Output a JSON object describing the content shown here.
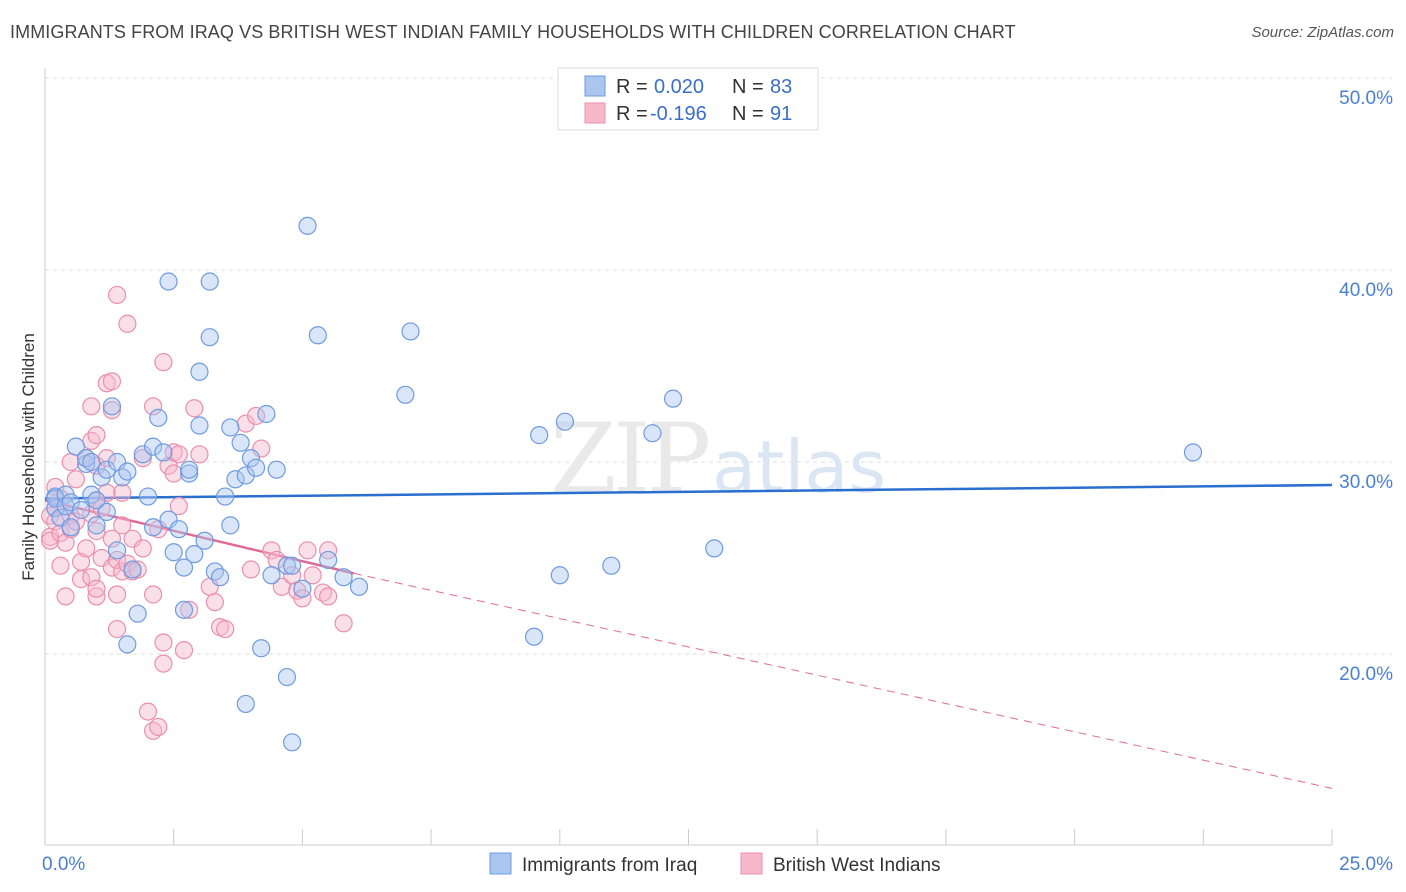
{
  "header": {
    "title": "IMMIGRANTS FROM IRAQ VS BRITISH WEST INDIAN FAMILY HOUSEHOLDS WITH CHILDREN CORRELATION CHART",
    "source": "Source: ZipAtlas.com"
  },
  "watermark": {
    "zip": "ZIP",
    "atlas": "atlas"
  },
  "colors": {
    "blue_fill": "#aac6ef",
    "blue_stroke": "#6f9be0",
    "blue_line": "#2a6fcf",
    "pink_fill": "#f7b8cc",
    "pink_stroke": "#eb8fae",
    "pink_line": "#e06a96",
    "grid": "#dddddd",
    "tick_text": "#4a7fd0"
  },
  "chart_data": {
    "type": "scatter",
    "title": "IMMIGRANTS FROM IRAQ VS BRITISH WEST INDIAN FAMILY HOUSEHOLDS WITH CHILDREN CORRELATION CHART",
    "xlabel": "",
    "ylabel": "Family Households with Children",
    "xlim": [
      0,
      25
    ],
    "ylim": [
      11,
      51
    ],
    "x_tick_labels": [
      "0.0%",
      "25.0%"
    ],
    "y_ticks": [
      20,
      30,
      40,
      50
    ],
    "y_tick_labels": [
      "20.0%",
      "30.0%",
      "40.0%",
      "50.0%"
    ],
    "legend": {
      "position": "top-center",
      "entries": [
        {
          "r_label": "R =",
          "r_value": "0.020",
          "n_label": "N =",
          "n_value": "83"
        },
        {
          "r_label": "R =",
          "r_value": "-0.196",
          "n_label": "N =",
          "n_value": "91"
        }
      ]
    },
    "series": [
      {
        "name": "Immigrants from Iraq",
        "color": "blue",
        "trend": {
          "x": [
            0,
            25
          ],
          "y": [
            28.1,
            28.8
          ],
          "style": "solid"
        },
        "points": [
          [
            0.2,
            28.2
          ],
          [
            0.2,
            27.6
          ],
          [
            0.2,
            28.1
          ],
          [
            0.3,
            27.1
          ],
          [
            0.4,
            28.3
          ],
          [
            0.4,
            27.7
          ],
          [
            0.5,
            27.9
          ],
          [
            0.5,
            26.6
          ],
          [
            0.6,
            30.8
          ],
          [
            0.7,
            27.5
          ],
          [
            0.8,
            29.9
          ],
          [
            0.8,
            30.2
          ],
          [
            0.9,
            30.0
          ],
          [
            0.9,
            28.3
          ],
          [
            1.0,
            28.0
          ],
          [
            1.0,
            26.7
          ],
          [
            1.1,
            29.2
          ],
          [
            1.2,
            29.6
          ],
          [
            1.2,
            27.4
          ],
          [
            1.3,
            32.9
          ],
          [
            1.4,
            30.0
          ],
          [
            1.4,
            25.4
          ],
          [
            1.5,
            29.2
          ],
          [
            1.6,
            20.5
          ],
          [
            1.6,
            29.5
          ],
          [
            1.7,
            24.4
          ],
          [
            1.8,
            22.1
          ],
          [
            1.9,
            30.4
          ],
          [
            2.0,
            28.2
          ],
          [
            2.1,
            30.8
          ],
          [
            2.1,
            26.6
          ],
          [
            2.2,
            32.3
          ],
          [
            2.3,
            30.5
          ],
          [
            2.4,
            27.0
          ],
          [
            2.4,
            39.4
          ],
          [
            2.5,
            25.3
          ],
          [
            2.6,
            26.5
          ],
          [
            2.7,
            22.3
          ],
          [
            2.7,
            24.5
          ],
          [
            2.8,
            29.4
          ],
          [
            2.8,
            29.6
          ],
          [
            2.9,
            25.2
          ],
          [
            3.0,
            31.9
          ],
          [
            3.0,
            34.7
          ],
          [
            3.1,
            25.9
          ],
          [
            3.2,
            36.5
          ],
          [
            3.2,
            39.4
          ],
          [
            3.3,
            24.3
          ],
          [
            3.4,
            24.0
          ],
          [
            3.5,
            28.2
          ],
          [
            3.6,
            31.8
          ],
          [
            3.6,
            26.7
          ],
          [
            3.7,
            29.1
          ],
          [
            3.8,
            31.0
          ],
          [
            3.9,
            17.4
          ],
          [
            3.9,
            29.3
          ],
          [
            4.0,
            30.2
          ],
          [
            4.1,
            29.7
          ],
          [
            4.2,
            20.3
          ],
          [
            4.3,
            32.5
          ],
          [
            4.4,
            24.1
          ],
          [
            4.5,
            29.6
          ],
          [
            4.7,
            24.6
          ],
          [
            4.7,
            18.8
          ],
          [
            4.8,
            15.4
          ],
          [
            4.8,
            24.6
          ],
          [
            5.0,
            23.4
          ],
          [
            5.1,
            42.3
          ],
          [
            5.3,
            36.6
          ],
          [
            5.5,
            24.9
          ],
          [
            5.8,
            24.0
          ],
          [
            6.1,
            23.5
          ],
          [
            7.0,
            33.5
          ],
          [
            7.1,
            36.8
          ],
          [
            9.5,
            20.9
          ],
          [
            9.6,
            31.4
          ],
          [
            10.0,
            24.1
          ],
          [
            10.1,
            32.1
          ],
          [
            11.0,
            24.6
          ],
          [
            11.8,
            31.5
          ],
          [
            12.2,
            33.3
          ],
          [
            13.0,
            25.5
          ],
          [
            22.3,
            30.5
          ]
        ]
      },
      {
        "name": "British West Indians",
        "color": "pink",
        "trend": {
          "x": [
            0,
            6.0
          ],
          "y": [
            28.0,
            24.2
          ],
          "style": "solid",
          "extended_x": [
            6.0,
            25
          ],
          "extended_y": [
            24.2,
            13.0
          ],
          "extended_style": "dashed"
        },
        "points": [
          [
            0.1,
            27.2
          ],
          [
            0.1,
            26.1
          ],
          [
            0.1,
            25.9
          ],
          [
            0.2,
            28.7
          ],
          [
            0.2,
            27.6
          ],
          [
            0.2,
            26.9
          ],
          [
            0.3,
            28.1
          ],
          [
            0.3,
            26.3
          ],
          [
            0.3,
            24.6
          ],
          [
            0.4,
            23.0
          ],
          [
            0.4,
            25.8
          ],
          [
            0.5,
            27.2
          ],
          [
            0.5,
            26.5
          ],
          [
            0.5,
            30.0
          ],
          [
            0.6,
            26.9
          ],
          [
            0.6,
            29.1
          ],
          [
            0.7,
            23.9
          ],
          [
            0.7,
            24.8
          ],
          [
            0.8,
            25.5
          ],
          [
            0.8,
            30.2
          ],
          [
            0.9,
            31.1
          ],
          [
            0.9,
            27.3
          ],
          [
            0.9,
            24.0
          ],
          [
            0.9,
            32.9
          ],
          [
            1.0,
            28.0
          ],
          [
            1.0,
            26.4
          ],
          [
            1.0,
            23.0
          ],
          [
            1.0,
            31.4
          ],
          [
            1.0,
            29.8
          ],
          [
            1.0,
            23.4
          ],
          [
            1.1,
            25.0
          ],
          [
            1.1,
            27.6
          ],
          [
            1.2,
            28.4
          ],
          [
            1.2,
            30.2
          ],
          [
            1.2,
            34.1
          ],
          [
            1.3,
            32.7
          ],
          [
            1.3,
            26.0
          ],
          [
            1.3,
            24.5
          ],
          [
            1.3,
            34.2
          ],
          [
            1.4,
            38.7
          ],
          [
            1.4,
            21.3
          ],
          [
            1.4,
            23.1
          ],
          [
            1.4,
            24.9
          ],
          [
            1.5,
            28.4
          ],
          [
            1.5,
            26.7
          ],
          [
            1.5,
            24.3
          ],
          [
            1.6,
            37.2
          ],
          [
            1.6,
            24.7
          ],
          [
            1.7,
            26.0
          ],
          [
            1.7,
            24.3
          ],
          [
            1.8,
            24.4
          ],
          [
            1.9,
            25.5
          ],
          [
            1.9,
            30.2
          ],
          [
            2.0,
            17.0
          ],
          [
            2.1,
            16.0
          ],
          [
            2.1,
            32.9
          ],
          [
            2.1,
            23.1
          ],
          [
            2.2,
            16.2
          ],
          [
            2.2,
            26.5
          ],
          [
            2.3,
            35.2
          ],
          [
            2.3,
            20.6
          ],
          [
            2.3,
            19.5
          ],
          [
            2.4,
            29.8
          ],
          [
            2.5,
            30.5
          ],
          [
            2.5,
            29.4
          ],
          [
            2.6,
            27.7
          ],
          [
            2.6,
            30.4
          ],
          [
            2.7,
            20.2
          ],
          [
            2.8,
            22.3
          ],
          [
            2.9,
            32.8
          ],
          [
            3.0,
            30.4
          ],
          [
            3.2,
            23.5
          ],
          [
            3.3,
            22.7
          ],
          [
            3.4,
            21.4
          ],
          [
            3.5,
            21.3
          ],
          [
            3.9,
            32.0
          ],
          [
            4.0,
            24.4
          ],
          [
            4.1,
            32.4
          ],
          [
            4.2,
            30.7
          ],
          [
            4.4,
            25.4
          ],
          [
            4.6,
            23.5
          ],
          [
            4.8,
            24.1
          ],
          [
            4.9,
            23.3
          ],
          [
            5.0,
            22.9
          ],
          [
            5.1,
            25.4
          ],
          [
            5.2,
            24.1
          ],
          [
            5.4,
            23.2
          ],
          [
            5.5,
            23.0
          ],
          [
            5.5,
            25.4
          ],
          [
            5.8,
            21.6
          ],
          [
            4.5,
            24.9
          ]
        ]
      }
    ]
  },
  "bottom_legend": {
    "items": [
      "Immigrants from Iraq",
      "British West Indians"
    ]
  }
}
